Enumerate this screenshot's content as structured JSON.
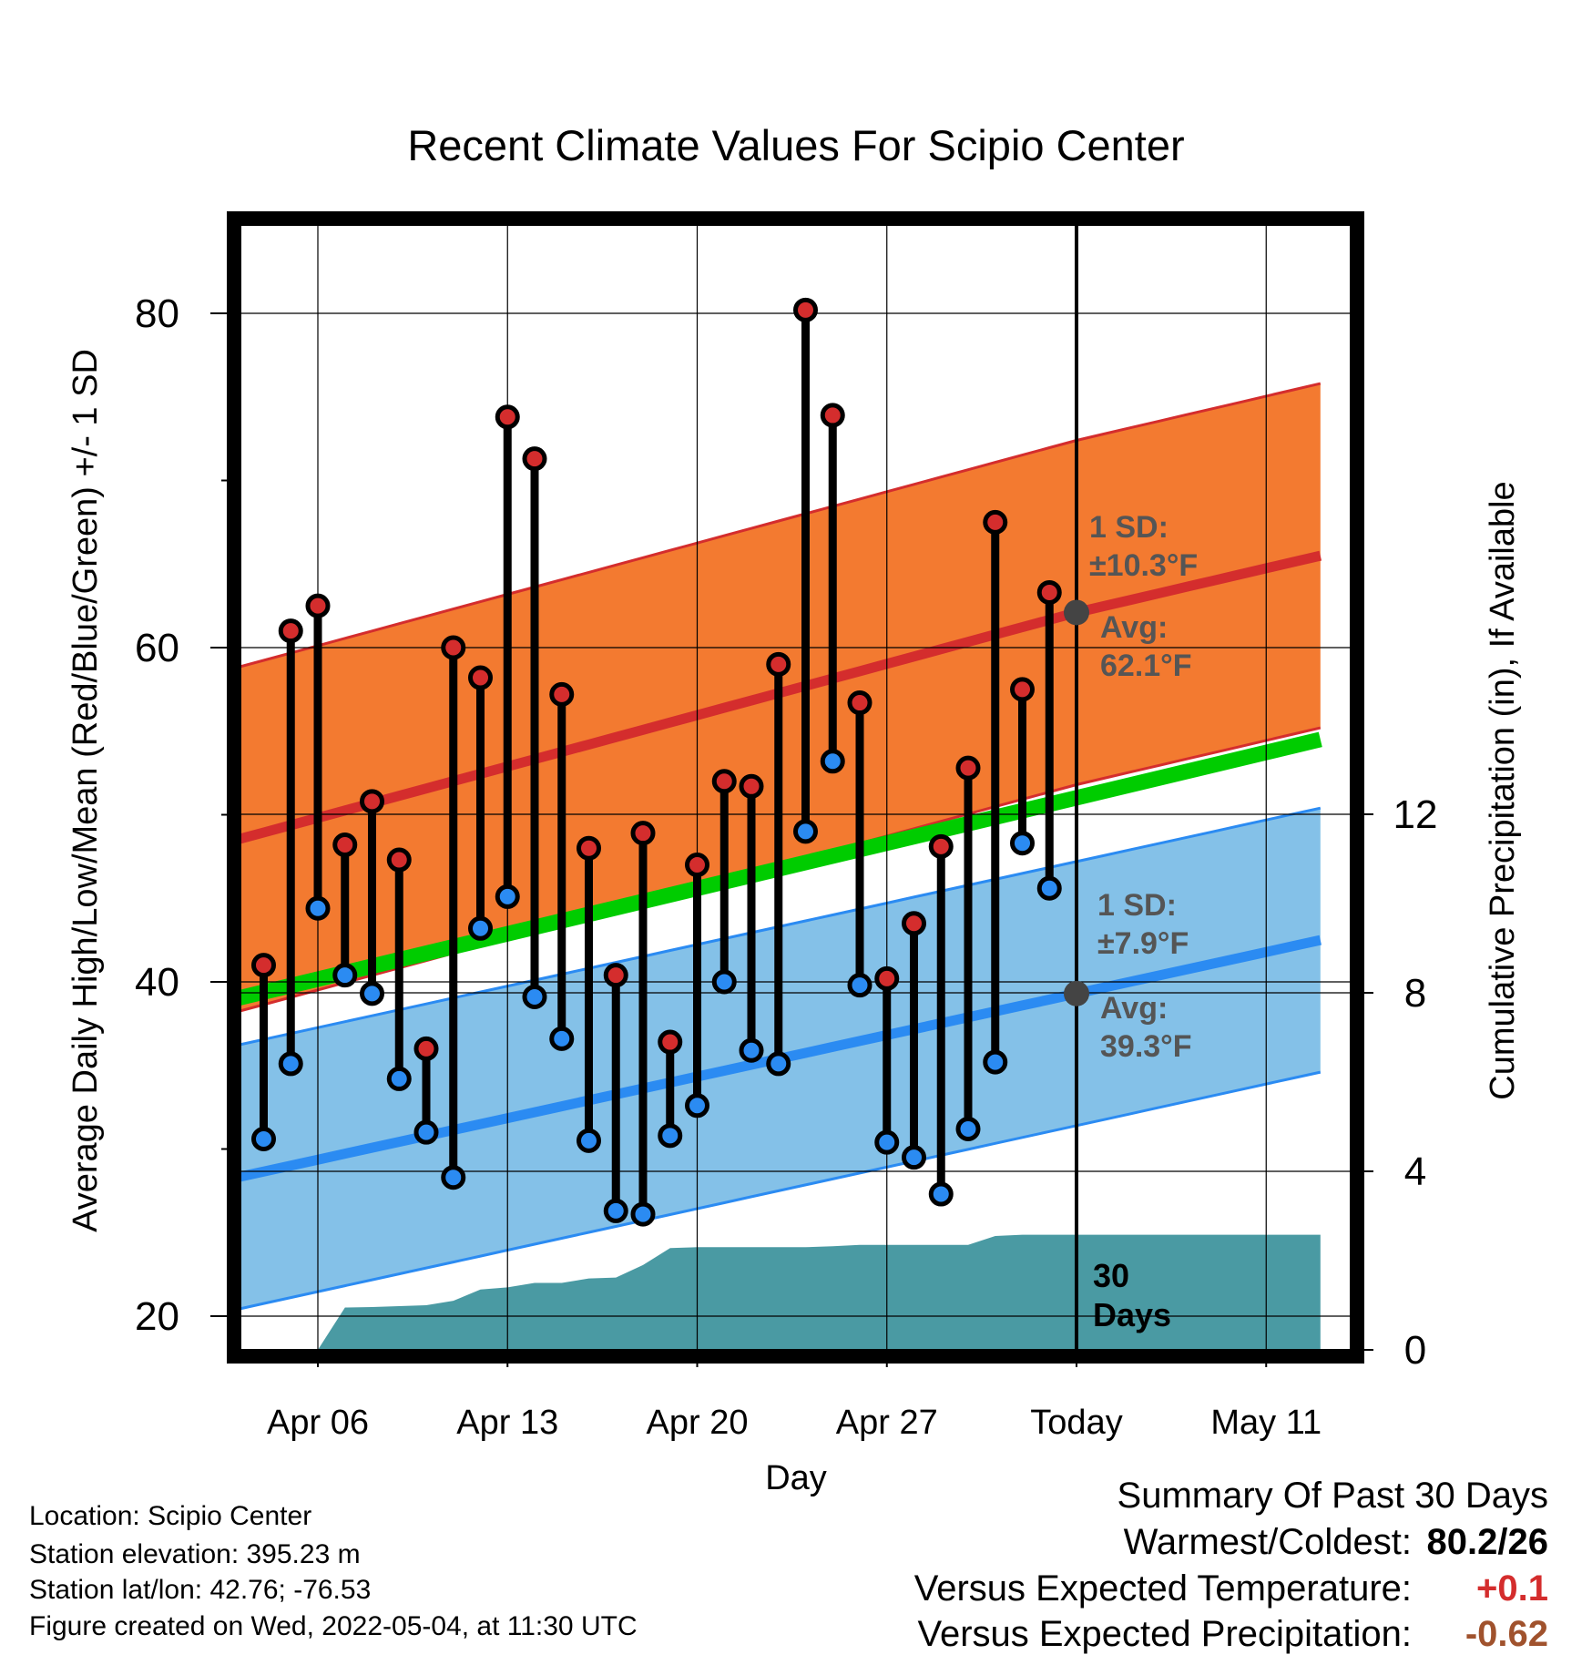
{
  "chart_data": {
    "type": "line",
    "title": "Recent Climate Values For Scipio Center",
    "xlabel": "Day",
    "ylabel": "Average Daily High/Low/Mean (Red/Blue/Green) +/- 1 SD",
    "y2label": "Cumulative Precipitation (in), If Available",
    "ylim": [
      18,
      85
    ],
    "y_ticks": [
      20,
      40,
      60,
      80
    ],
    "y2lim": [
      0,
      12.7
    ],
    "y2_ticks": [
      0,
      4,
      8,
      12
    ],
    "x_ticks": [
      "Apr 06",
      "Apr 13",
      "Apr 20",
      "Apr 27",
      "Today",
      "May 11"
    ],
    "x_start": "Apr 03",
    "x_end": "May 13",
    "today": "May 04",
    "grid": true,
    "days": [
      "Apr 04",
      "Apr 05",
      "Apr 06",
      "Apr 07",
      "Apr 08",
      "Apr 09",
      "Apr 10",
      "Apr 11",
      "Apr 12",
      "Apr 13",
      "Apr 14",
      "Apr 15",
      "Apr 16",
      "Apr 17",
      "Apr 18",
      "Apr 19",
      "Apr 20",
      "Apr 21",
      "Apr 22",
      "Apr 23",
      "Apr 24",
      "Apr 25",
      "Apr 26",
      "Apr 27",
      "Apr 28",
      "Apr 29",
      "Apr 30",
      "May 01",
      "May 02",
      "May 03"
    ],
    "highs": [
      41,
      61,
      62.5,
      48.2,
      50.8,
      47.3,
      36,
      60,
      58.2,
      73.8,
      71.3,
      57.2,
      48,
      40.4,
      48.9,
      36.4,
      47,
      52,
      51.7,
      59,
      80.2,
      73.9,
      56.7,
      40.2,
      43.5,
      48.1,
      52.8,
      67.5,
      57.5,
      63.3
    ],
    "lows": [
      30.6,
      35.1,
      44.4,
      40.4,
      39.3,
      34.2,
      31,
      28.3,
      43.2,
      45.1,
      39.1,
      36.6,
      30.5,
      26.3,
      26.1,
      30.8,
      32.6,
      40,
      35.9,
      35.1,
      49,
      53.2,
      39.8,
      30.4,
      29.5,
      27.3,
      31.2,
      35.2,
      48.3,
      45.6
    ],
    "normal_bands": {
      "dates": [
        "Apr 03",
        "May 04",
        "May 13"
      ],
      "high_avg": [
        48.5,
        62.1,
        65.5
      ],
      "high_sd": 10.3,
      "low_avg": [
        28.3,
        39.3,
        42.5
      ],
      "low_sd": 7.9,
      "mean_start": 39,
      "mean_end": 54.5
    },
    "precip_days": [
      "Apr 06",
      "Apr 07",
      "Apr 08",
      "Apr 09",
      "Apr 10",
      "Apr 11",
      "Apr 12",
      "Apr 13",
      "Apr 14",
      "Apr 15",
      "Apr 16",
      "Apr 17",
      "Apr 18",
      "Apr 19",
      "Apr 20",
      "Apr 21",
      "Apr 22",
      "Apr 23",
      "Apr 24",
      "Apr 25",
      "Apr 26",
      "Apr 27",
      "Apr 28",
      "Apr 29",
      "Apr 30",
      "May 01",
      "May 02",
      "May 03",
      "May 04",
      "May 13"
    ],
    "precip_cum": [
      0,
      0.95,
      0.96,
      0.98,
      1.0,
      1.1,
      1.35,
      1.4,
      1.5,
      1.5,
      1.6,
      1.62,
      1.9,
      2.28,
      2.3,
      2.3,
      2.3,
      2.3,
      2.3,
      2.32,
      2.35,
      2.35,
      2.35,
      2.35,
      2.35,
      2.55,
      2.58,
      2.58,
      2.58,
      2.58
    ],
    "annotations": {
      "high_sd_label": [
        "1 SD:",
        "±10.3°F"
      ],
      "high_avg_label": [
        "Avg:",
        "62.1°F"
      ],
      "low_sd_label": [
        "1 SD:",
        "±7.9°F"
      ],
      "low_avg_label": [
        "Avg:",
        "39.3°F"
      ],
      "days_label": [
        "30",
        "Days"
      ]
    },
    "colors": {
      "high_band": "#f37a30",
      "high_line": "#d42d2d",
      "low_band": "#84c1e8",
      "low_line": "#2b8bf2",
      "mean_line": "#00cc00",
      "precip": "#4a9aa3",
      "high_dot": "#d42d2d",
      "low_dot": "#2b8bf2",
      "annotation": "#555555"
    }
  },
  "footer": {
    "location": "Location: Scipio Center",
    "elevation": "Station elevation: 395.23 m",
    "latlon": "Station lat/lon: 42.76; -76.53",
    "created": "Figure created on Wed, 2022-05-04, at 11:30 UTC"
  },
  "summary": {
    "title": "Summary Of Past 30 Days",
    "warmest_label": "Warmest/Coldest:",
    "warmest_value": "80.2/26",
    "temp_label": "Versus Expected Temperature:",
    "temp_value": "+0.1",
    "temp_color": "#d42d2d",
    "precip_label": "Versus Expected Precipitation:",
    "precip_value": "-0.62",
    "precip_color": "#a0522d"
  }
}
